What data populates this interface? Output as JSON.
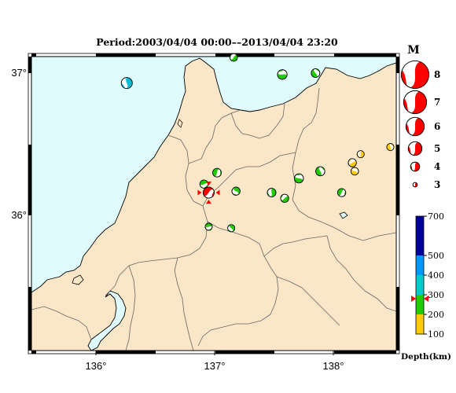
{
  "header": {
    "title": "Period:2003/04/04 00:00––2013/04/04 23:20"
  },
  "axes": {
    "x_ticks": [
      "136°",
      "137°",
      "138°"
    ],
    "y_ticks": [
      "37°",
      "36°"
    ]
  },
  "magnitude_legend": {
    "title": "M",
    "items": [
      {
        "label": "8",
        "m": 8
      },
      {
        "label": "7",
        "m": 7
      },
      {
        "label": "6",
        "m": 6
      },
      {
        "label": "5",
        "m": 5
      },
      {
        "label": "4",
        "m": 4
      },
      {
        "label": "3",
        "m": 3
      }
    ]
  },
  "depth_scale": {
    "unit_label": "Depth(km)",
    "tick_labels": [
      "700",
      "500",
      "400",
      "300",
      "200",
      "100"
    ],
    "current_depth_km": 280,
    "bands": [
      {
        "from": 100,
        "to": 200,
        "color": "#ffcc00"
      },
      {
        "from": 200,
        "to": 300,
        "color": "#22cc00"
      },
      {
        "from": 300,
        "to": 400,
        "color": "#00cccc"
      },
      {
        "from": 400,
        "to": 500,
        "color": "#0099ff"
      },
      {
        "from": 500,
        "to": 700,
        "color": "#000099"
      }
    ]
  },
  "colors": {
    "sea": "#dffbfd",
    "land": "#fbe6c8",
    "border": "#666666",
    "coast": "#000000",
    "highlight": "#ff0000"
  },
  "events": [
    {
      "lon": 136.26,
      "lat": 36.93,
      "color": "#00bcd4",
      "m": 4.3
    },
    {
      "lon": 137.16,
      "lat": 37.11,
      "color": "#22cc00",
      "m": 3.6
    },
    {
      "lon": 137.57,
      "lat": 36.99,
      "color": "#22cc00",
      "m": 4.0
    },
    {
      "lon": 137.85,
      "lat": 37.0,
      "color": "#22cc00",
      "m": 3.8
    },
    {
      "lon": 137.02,
      "lat": 36.3,
      "color": "#22cc00",
      "m": 3.8
    },
    {
      "lon": 136.91,
      "lat": 36.22,
      "color": "#22cc00",
      "m": 3.7
    },
    {
      "lon": 137.18,
      "lat": 36.17,
      "color": "#22cc00",
      "m": 3.7
    },
    {
      "lon": 137.48,
      "lat": 36.16,
      "color": "#22cc00",
      "m": 3.8
    },
    {
      "lon": 137.59,
      "lat": 36.12,
      "color": "#22cc00",
      "m": 3.7
    },
    {
      "lon": 137.71,
      "lat": 36.26,
      "color": "#22cc00",
      "m": 3.9
    },
    {
      "lon": 137.89,
      "lat": 36.31,
      "color": "#22cc00",
      "m": 3.9
    },
    {
      "lon": 138.07,
      "lat": 36.16,
      "color": "#22cc00",
      "m": 3.7
    },
    {
      "lon": 136.95,
      "lat": 35.92,
      "color": "#22cc00",
      "m": 3.5
    },
    {
      "lon": 137.14,
      "lat": 35.91,
      "color": "#22cc00",
      "m": 3.5
    },
    {
      "lon": 138.23,
      "lat": 36.43,
      "color": "#ffcc00",
      "m": 3.5
    },
    {
      "lon": 138.16,
      "lat": 36.37,
      "color": "#ffcc00",
      "m": 3.7
    },
    {
      "lon": 138.18,
      "lat": 36.31,
      "color": "#ffcc00",
      "m": 3.6
    },
    {
      "lon": 138.48,
      "lat": 36.48,
      "color": "#ffcc00",
      "m": 3.5
    },
    {
      "lon": 136.95,
      "lat": 36.16,
      "color": "#ff0000",
      "m": 4.3,
      "highlight": true
    }
  ]
}
